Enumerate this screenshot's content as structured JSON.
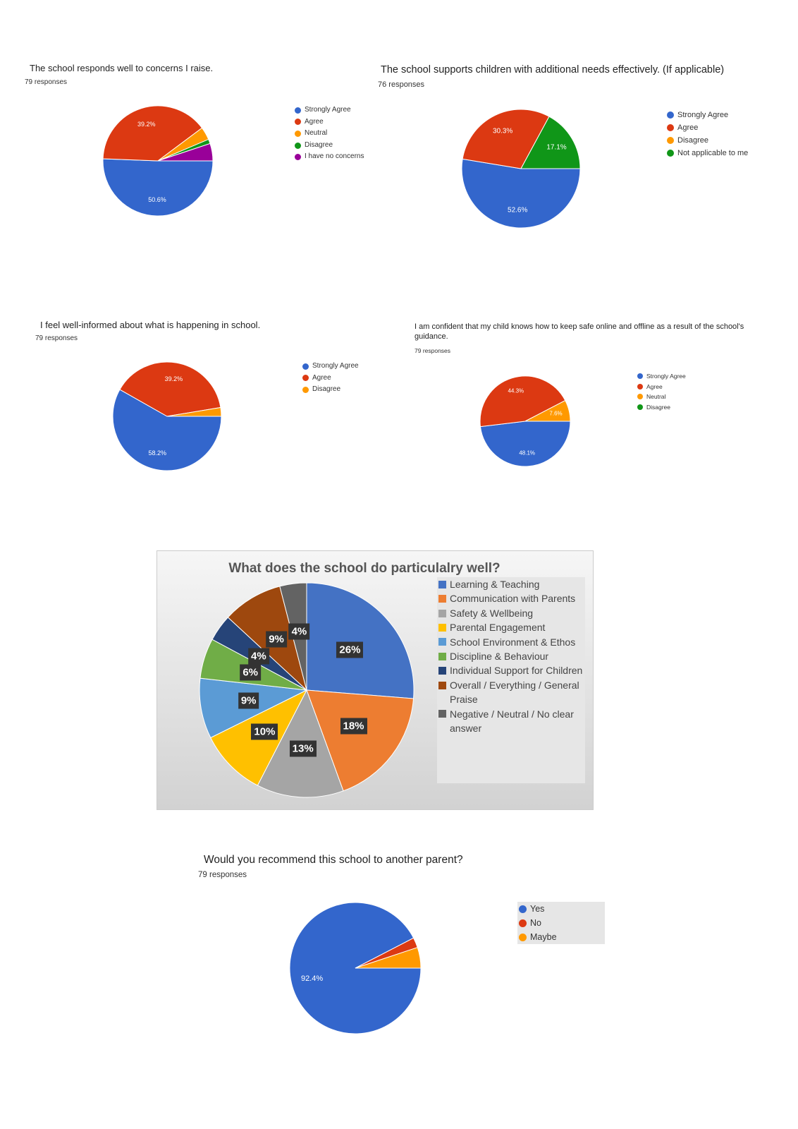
{
  "chart_data": [
    {
      "type": "pie",
      "title": "The school responds well to concerns I raise.",
      "subtitle": "79 responses",
      "categories": [
        "Strongly Agree",
        "Agree",
        "Neutral",
        "Disagree",
        "I have no concerns"
      ],
      "values": [
        50.6,
        39.2,
        3.8,
        1.3,
        5.1
      ],
      "value_labels": [
        "50.6%",
        "39.2%",
        null,
        null,
        null
      ],
      "colors": [
        "#3366cc",
        "#dc3912",
        "#ff9900",
        "#109618",
        "#990099"
      ]
    },
    {
      "type": "pie",
      "title": "The school supports children with additional needs effectively. (If applicable)",
      "subtitle": "76 responses",
      "categories": [
        "Strongly Agree",
        "Agree",
        "Disagree",
        "Not applicable to me"
      ],
      "values": [
        52.6,
        30.3,
        0,
        17.1
      ],
      "value_labels": [
        "52.6%",
        "30.3%",
        null,
        "17.1%"
      ],
      "colors": [
        "#3366cc",
        "#dc3912",
        "#ff9900",
        "#109618"
      ]
    },
    {
      "type": "pie",
      "title": "I feel well-informed about what is happening in school.",
      "subtitle": "79 responses",
      "categories": [
        "Strongly Agree",
        "Agree",
        "Disagree"
      ],
      "values": [
        58.2,
        39.2,
        2.6
      ],
      "value_labels": [
        "58.2%",
        "39.2%",
        null
      ],
      "colors": [
        "#3366cc",
        "#dc3912",
        "#ff9900"
      ]
    },
    {
      "type": "pie",
      "title": "I am confident that my child knows how to keep safe online and offline as a result of the school's guidance.",
      "subtitle": "79 responses",
      "categories": [
        "Strongly Agree",
        "Agree",
        "Neutral",
        "Disagree"
      ],
      "values": [
        48.1,
        44.3,
        7.6,
        0
      ],
      "value_labels": [
        "48.1%",
        "44.3%",
        "7.6%",
        null
      ],
      "colors": [
        "#3366cc",
        "#dc3912",
        "#ff9900",
        "#109618"
      ]
    },
    {
      "type": "pie",
      "title": "What does the school do particulalry well?",
      "categories": [
        "Learning & Teaching",
        "Communication with Parents",
        "Safety & Wellbeing",
        "Parental Engagement",
        "School Environment & Ethos",
        "Discipline & Behaviour",
        "Individual Support for Children",
        "Overall / Everything / General Praise",
        "Negative / Neutral / No clear answer"
      ],
      "values": [
        26,
        18,
        13,
        10,
        9,
        6,
        4,
        9,
        4
      ],
      "value_labels": [
        "26%",
        "18%",
        "13%",
        "10%",
        "9%",
        "6%",
        "4%",
        "9%",
        "4%"
      ],
      "colors": [
        "#4472c4",
        "#ed7d31",
        "#a5a5a5",
        "#ffc000",
        "#5b9bd5",
        "#70ad47",
        "#264478",
        "#9e480e",
        "#636363"
      ]
    },
    {
      "type": "pie",
      "title": "Would you recommend this school to another parent?",
      "subtitle": "79 responses",
      "categories": [
        "Yes",
        "No",
        "Maybe"
      ],
      "values": [
        92.4,
        2.5,
        5.1
      ],
      "value_labels": [
        "92.4%",
        null,
        null
      ],
      "colors": [
        "#3366cc",
        "#dc3912",
        "#ff9900"
      ]
    }
  ]
}
